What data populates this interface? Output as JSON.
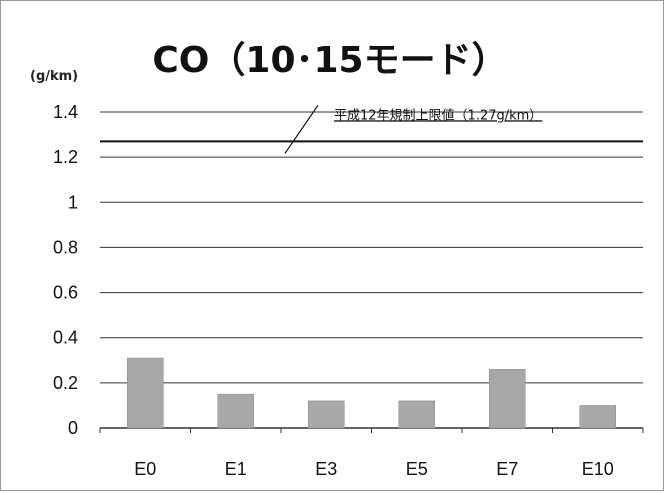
{
  "chart_data": {
    "type": "bar",
    "title": "CO（10･15モード）",
    "ylabel": "(g/km)",
    "xlabel": "",
    "categories": [
      "E0",
      "E1",
      "E3",
      "E5",
      "E7",
      "E10"
    ],
    "values": [
      0.31,
      0.15,
      0.12,
      0.12,
      0.26,
      0.1
    ],
    "ylim": [
      0,
      1.4
    ],
    "yticks": [
      "1.4",
      "1.2",
      "1",
      "0.8",
      "0.6",
      "0.4",
      "0.2",
      "0"
    ],
    "yticks_values": [
      1.4,
      1.2,
      1.0,
      0.8,
      0.6,
      0.4,
      0.2,
      0
    ],
    "grid": true,
    "reference_line": {
      "value": 1.27,
      "label": "平成12年規制上限値（1.27g/km）"
    },
    "colors": {
      "bar": "#a8a8a8",
      "grid": "#333333",
      "reference": "#111111"
    }
  }
}
